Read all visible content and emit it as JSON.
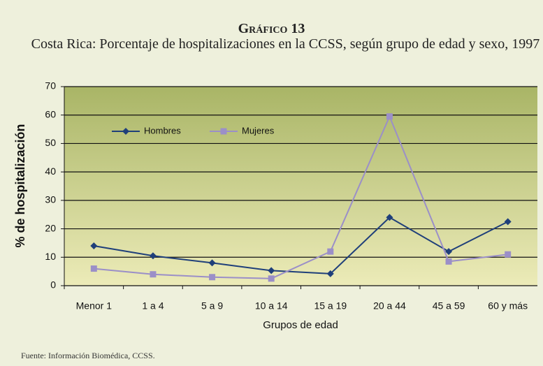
{
  "chart_data": {
    "type": "line",
    "title": "Gráfico 13",
    "subtitle": "Costa Rica: Porcentaje de hospitalizaciones en la CCSS, según grupo de edad y sexo, 1997",
    "y_label": "% de hospitalización",
    "x_label": "Grupos de edad",
    "source": "Fuente: Información Biomédica, CCSS.",
    "categories": [
      "Menor 1",
      "1 a 4",
      "5 a 9",
      "10 a 14",
      "15 a 19",
      "20 a 44",
      "45 a 59",
      "60 y más"
    ],
    "series": [
      {
        "name": "Hombres",
        "color": "#1f3f7a",
        "marker": "diamond",
        "values": [
          14,
          10.5,
          8,
          5.3,
          4.2,
          24,
          12,
          22.5
        ]
      },
      {
        "name": "Mujeres",
        "color": "#9b8fc8",
        "marker": "square",
        "values": [
          6,
          4,
          3,
          2.5,
          12,
          59.5,
          8.5,
          11
        ]
      }
    ],
    "ylim": [
      0,
      70
    ],
    "yticks": [
      0,
      10,
      20,
      30,
      40,
      50,
      60,
      70
    ],
    "grid": true,
    "legend": "top-left"
  }
}
